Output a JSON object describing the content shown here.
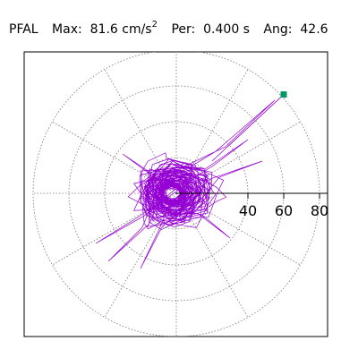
{
  "header": {
    "station": "PFAL",
    "max_label": "Max:",
    "max_value": "81.6",
    "max_unit": "cm/s",
    "max_unit_exp": "2",
    "per_label": "Per:",
    "per_value": "0.400 s",
    "ang_label": "Ang:",
    "ang_value": "42.6"
  },
  "chart_data": {
    "type": "polar-trace",
    "title": "PFAL  Max: 81.6 cm/s2  Per: 0.400 s  Ang: 42.6",
    "radial_ticks": [
      40,
      60,
      80
    ],
    "rings": [
      20,
      40,
      60,
      80
    ],
    "angular_grid_deg": [
      0,
      30,
      60,
      90,
      120,
      150,
      180,
      210,
      240,
      270,
      300,
      330
    ],
    "rmax": 80,
    "max_value": 81.6,
    "max_angle_deg": 42.6,
    "max_point": {
      "x": 60.0,
      "y": 55.2
    },
    "trace_color": "#9400d3",
    "max_marker_color": "#009966",
    "grid": true
  }
}
